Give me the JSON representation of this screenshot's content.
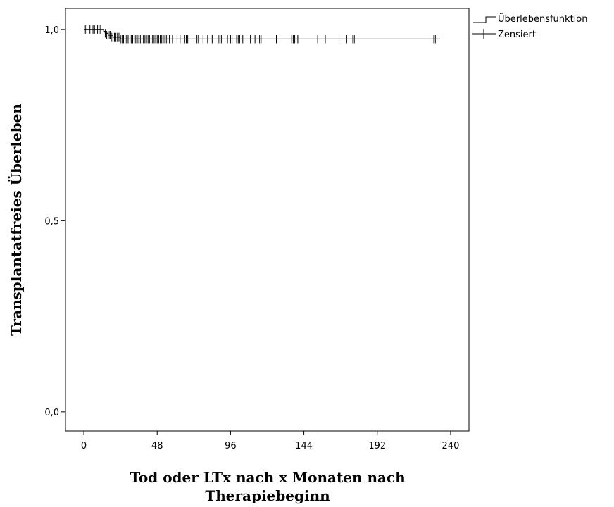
{
  "chart_data": {
    "type": "line",
    "subtype": "kaplan-meier",
    "title": "",
    "xlabel_lines": [
      "Tod oder LTx nach x Monaten nach",
      "Therapiebeginn"
    ],
    "ylabel": "Transplantatfreies Überleben",
    "xlim": [
      -12,
      252
    ],
    "ylim": [
      -0.05,
      1.055
    ],
    "x_ticks": [
      0,
      48,
      96,
      144,
      192,
      240
    ],
    "x_tick_labels": [
      "0",
      "48",
      "96",
      "144",
      "192",
      "240"
    ],
    "y_ticks": [
      0.0,
      0.5,
      1.0
    ],
    "y_tick_labels": [
      "0,0",
      "0,5",
      "1,0"
    ],
    "grid": false,
    "legend_position": "top-right-outside",
    "series": [
      {
        "name": "Überlebensfunktion",
        "kind": "step",
        "x": [
          0,
          13,
          14,
          16,
          19,
          24,
          233
        ],
        "y": [
          1.0,
          0.995,
          0.99,
          0.985,
          0.98,
          0.975,
          0.975
        ]
      },
      {
        "name": "Zensiert",
        "kind": "censor-marks",
        "x": [
          1,
          2,
          4,
          6,
          7,
          9,
          10,
          11,
          14,
          15,
          16,
          17,
          17.5,
          18,
          19,
          20,
          21,
          22,
          23,
          24,
          25,
          26,
          27,
          28,
          29,
          31,
          32,
          33,
          34,
          35,
          36,
          37,
          38,
          39,
          40,
          41,
          42,
          43,
          44,
          45,
          46,
          47,
          48,
          49,
          50,
          51,
          52,
          53,
          54,
          55,
          56,
          58,
          61,
          63,
          66,
          67,
          68,
          74,
          75,
          78,
          81,
          84,
          88,
          89,
          90,
          94,
          96,
          97,
          100,
          101,
          102,
          104,
          109,
          112,
          114,
          115,
          116,
          126,
          136,
          137,
          138,
          140,
          153,
          158,
          167,
          172,
          176,
          177,
          229,
          230
        ],
        "y": [
          1.0,
          1.0,
          1.0,
          1.0,
          1.0,
          1.0,
          1.0,
          1.0,
          0.99,
          0.985,
          0.985,
          0.985,
          0.985,
          0.98,
          0.98,
          0.98,
          0.98,
          0.98,
          0.98,
          0.975,
          0.975,
          0.975,
          0.975,
          0.975,
          0.975,
          0.975,
          0.975,
          0.975,
          0.975,
          0.975,
          0.975,
          0.975,
          0.975,
          0.975,
          0.975,
          0.975,
          0.975,
          0.975,
          0.975,
          0.975,
          0.975,
          0.975,
          0.975,
          0.975,
          0.975,
          0.975,
          0.975,
          0.975,
          0.975,
          0.975,
          0.975,
          0.975,
          0.975,
          0.975,
          0.975,
          0.975,
          0.975,
          0.975,
          0.975,
          0.975,
          0.975,
          0.975,
          0.975,
          0.975,
          0.975,
          0.975,
          0.975,
          0.975,
          0.975,
          0.975,
          0.975,
          0.975,
          0.975,
          0.975,
          0.975,
          0.975,
          0.975,
          0.975,
          0.975,
          0.975,
          0.975,
          0.975,
          0.975,
          0.975,
          0.975,
          0.975,
          0.975,
          0.975,
          0.975,
          0.975
        ]
      }
    ],
    "colors": {
      "line": "#000000",
      "background": "#ffffff"
    }
  }
}
